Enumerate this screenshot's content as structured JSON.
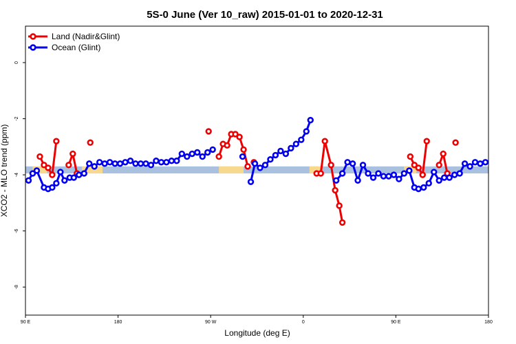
{
  "chart_data": {
    "type": "line",
    "title": "5S-0 June (Ver 10_raw)   2015-01-01 to 2020-12-31",
    "xlabel": "Longitude (deg E)",
    "ylabel": "XCO2 - MLO trend (ppm)",
    "xlim": [
      90,
      540
    ],
    "ylim": [
      -9,
      1.3
    ],
    "x_ticks": [
      {
        "value": 90,
        "label": "90 E"
      },
      {
        "value": 180,
        "label": "180"
      },
      {
        "value": 270,
        "label": "90 W"
      },
      {
        "value": 360,
        "label": "0"
      },
      {
        "value": 450,
        "label": "90 E"
      },
      {
        "value": 540,
        "label": "180"
      }
    ],
    "y_ticks": [
      {
        "value": 0,
        "label": "0"
      },
      {
        "value": -2,
        "label": "-2"
      },
      {
        "value": -4,
        "label": "-4"
      },
      {
        "value": -6,
        "label": "-6"
      },
      {
        "value": -8,
        "label": "-8"
      }
    ],
    "grid": false,
    "legend_position": "top-left",
    "band": {
      "y_range": [
        -3.95,
        -3.7
      ],
      "color": "#a9c0de",
      "land_color": "#f7d98e",
      "land_segments": [
        [
          97,
          111
        ],
        [
          145,
          165
        ],
        [
          278,
          302
        ],
        [
          366,
          377
        ],
        [
          458,
          470
        ]
      ]
    },
    "series": [
      {
        "name": "Land (Nadir&Glint)",
        "color": "#ee0000",
        "segments": [
          [
            [
              104,
              -3.35
            ],
            [
              108,
              -3.65
            ],
            [
              112,
              -3.75
            ],
            [
              116,
              -4.0
            ],
            [
              120,
              -2.8
            ]
          ],
          [
            [
              132,
              -3.65
            ],
            [
              136,
              -3.25
            ],
            [
              140,
              -3.95
            ]
          ],
          [
            [
              153,
              -2.85
            ]
          ],
          [
            [
              268,
              -2.45
            ]
          ],
          [
            [
              278,
              -3.35
            ],
            [
              282,
              -2.9
            ],
            [
              286,
              -2.95
            ],
            [
              290,
              -2.55
            ],
            [
              294,
              -2.55
            ],
            [
              298,
              -2.65
            ],
            [
              302,
              -3.1
            ],
            [
              306,
              -3.7
            ]
          ],
          [
            [
              312,
              -3.55
            ]
          ],
          [
            [
              373,
              -3.95
            ],
            [
              377,
              -3.95
            ],
            [
              381,
              -2.8
            ],
            [
              387,
              -3.65
            ],
            [
              391,
              -4.55
            ],
            [
              395,
              -5.1
            ],
            [
              398,
              -5.7
            ]
          ],
          [
            [
              464,
              -3.35
            ],
            [
              468,
              -3.65
            ],
            [
              472,
              -3.75
            ],
            [
              476,
              -4.0
            ],
            [
              480,
              -2.8
            ]
          ],
          [
            [
              492,
              -3.65
            ],
            [
              496,
              -3.25
            ],
            [
              500,
              -3.95
            ]
          ],
          [
            [
              508,
              -2.85
            ]
          ]
        ]
      },
      {
        "name": "Ocean (Glint)",
        "color": "#0000ee",
        "segments": [
          [
            [
              93,
              -4.2
            ],
            [
              97,
              -3.95
            ],
            [
              101,
              -3.85
            ],
            [
              108,
              -4.45
            ],
            [
              112,
              -4.5
            ],
            [
              116,
              -4.45
            ],
            [
              120,
              -4.3
            ],
            [
              124,
              -3.9
            ],
            [
              128,
              -4.2
            ],
            [
              133,
              -4.1
            ],
            [
              137,
              -4.1
            ],
            [
              142,
              -4.0
            ],
            [
              147,
              -3.95
            ],
            [
              152,
              -3.6
            ],
            [
              157,
              -3.7
            ],
            [
              162,
              -3.55
            ],
            [
              167,
              -3.6
            ],
            [
              172,
              -3.55
            ],
            [
              177,
              -3.6
            ],
            [
              182,
              -3.6
            ],
            [
              187,
              -3.55
            ],
            [
              192,
              -3.5
            ],
            [
              197,
              -3.6
            ],
            [
              202,
              -3.6
            ],
            [
              207,
              -3.6
            ],
            [
              212,
              -3.65
            ],
            [
              217,
              -3.5
            ],
            [
              222,
              -3.55
            ],
            [
              227,
              -3.55
            ],
            [
              232,
              -3.5
            ],
            [
              237,
              -3.5
            ],
            [
              242,
              -3.25
            ],
            [
              247,
              -3.35
            ],
            [
              252,
              -3.25
            ],
            [
              257,
              -3.2
            ],
            [
              262,
              -3.35
            ],
            [
              267,
              -3.2
            ],
            [
              272,
              -3.1
            ]
          ],
          [
            [
              301,
              -3.35
            ]
          ],
          [
            [
              309,
              -4.25
            ],
            [
              313,
              -3.6
            ],
            [
              318,
              -3.75
            ],
            [
              323,
              -3.65
            ],
            [
              328,
              -3.45
            ],
            [
              333,
              -3.3
            ],
            [
              338,
              -3.15
            ],
            [
              343,
              -3.25
            ],
            [
              348,
              -3.05
            ],
            [
              353,
              -2.9
            ],
            [
              358,
              -2.75
            ],
            [
              363,
              -2.45
            ],
            [
              367,
              -2.05
            ]
          ],
          [
            [
              392,
              -4.2
            ],
            [
              398,
              -3.95
            ],
            [
              403,
              -3.55
            ],
            [
              408,
              -3.6
            ],
            [
              413,
              -4.2
            ],
            [
              418,
              -3.65
            ],
            [
              423,
              -3.95
            ],
            [
              428,
              -4.1
            ],
            [
              433,
              -3.95
            ],
            [
              438,
              -4.05
            ],
            [
              443,
              -4.05
            ],
            [
              448,
              -4.0
            ],
            [
              453,
              -4.15
            ],
            [
              458,
              -3.95
            ],
            [
              463,
              -3.85
            ],
            [
              468,
              -4.45
            ],
            [
              472,
              -4.5
            ],
            [
              477,
              -4.45
            ],
            [
              482,
              -4.3
            ],
            [
              487,
              -3.9
            ],
            [
              492,
              -4.2
            ],
            [
              497,
              -4.1
            ],
            [
              502,
              -4.1
            ],
            [
              507,
              -4.0
            ],
            [
              512,
              -3.95
            ],
            [
              517,
              -3.6
            ],
            [
              522,
              -3.7
            ],
            [
              527,
              -3.55
            ],
            [
              532,
              -3.6
            ],
            [
              537,
              -3.55
            ]
          ]
        ]
      }
    ]
  }
}
